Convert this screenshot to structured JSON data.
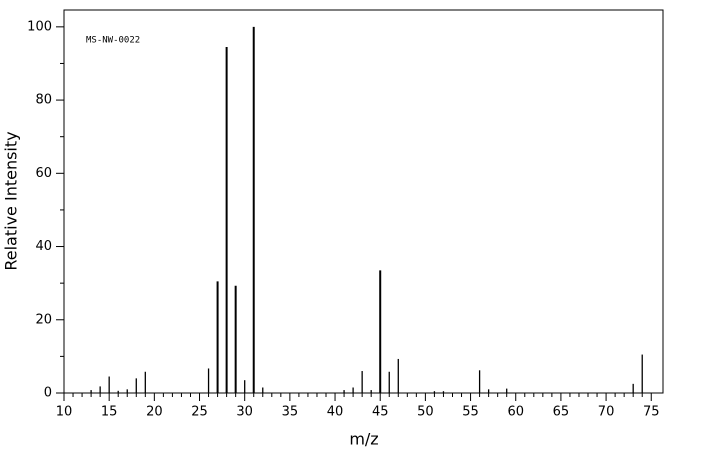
{
  "chart_data": {
    "type": "stick",
    "annotation": "MS-NW-0022",
    "xlabel": "m/z",
    "ylabel": "Relative Intensity",
    "x": [
      13,
      14,
      15,
      16,
      17,
      18,
      19,
      26,
      27,
      28,
      29,
      30,
      31,
      32,
      41,
      42,
      43,
      44,
      45,
      46,
      47,
      51,
      52,
      56,
      57,
      59,
      73,
      74
    ],
    "values": [
      0.8,
      1.8,
      4.5,
      0.6,
      1.0,
      4.0,
      5.8,
      6.7,
      30.5,
      94.5,
      29.3,
      3.5,
      100,
      1.5,
      0.8,
      1.5,
      6.0,
      0.8,
      33.5,
      5.8,
      9.3,
      0.5,
      0.5,
      6.2,
      1.0,
      1.2,
      2.5,
      10.5
    ],
    "color": "#000000",
    "xlim": [
      10,
      76.3
    ],
    "ylim": [
      0,
      104.6
    ],
    "xticks": [
      10,
      15,
      20,
      25,
      30,
      35,
      40,
      45,
      50,
      55,
      60,
      65,
      70,
      75
    ],
    "yticks": [
      0,
      20,
      40,
      60,
      80,
      100
    ]
  }
}
